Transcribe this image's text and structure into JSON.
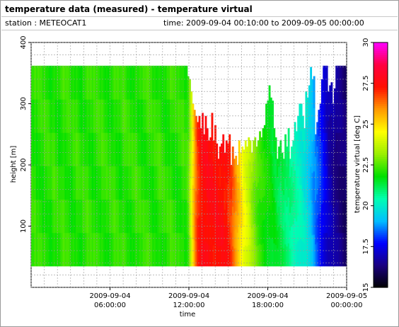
{
  "header": {
    "title": "temperature data (measured) - temperature virtual",
    "station": "station : METEOCAT1",
    "timerange": "time: 2009-09-04 00:10:00 to 2009-09-05 00:00:00"
  },
  "chart_data": {
    "type": "heatmap",
    "xlabel": "time",
    "ylabel": "height [m]",
    "colorbar_label": "temperature virtual [deg C]",
    "xlim": [
      0,
      24
    ],
    "ylim": [
      0,
      400
    ],
    "clim": [
      15,
      30
    ],
    "x_ticks": [
      {
        "value": 6,
        "line1": "2009-09-04",
        "line2": "06:00:00"
      },
      {
        "value": 12,
        "line1": "2009-09-04",
        "line2": "12:00:00"
      },
      {
        "value": 18,
        "line1": "2009-09-04",
        "line2": "18:00:00"
      },
      {
        "value": 24,
        "line1": "2009-09-05",
        "line2": "00:00:00"
      }
    ],
    "y_ticks": [
      {
        "value": 100,
        "label": "100"
      },
      {
        "value": 200,
        "label": "200"
      },
      {
        "value": 300,
        "label": "300"
      },
      {
        "value": 400,
        "label": "400"
      }
    ],
    "colorbar_ticks": [
      {
        "value": 15,
        "label": "15"
      },
      {
        "value": 17.5,
        "label": "17.5"
      },
      {
        "value": 20,
        "label": "20"
      },
      {
        "value": 22.5,
        "label": "22.5"
      },
      {
        "value": 25,
        "label": "25"
      },
      {
        "value": 27.5,
        "label": "27.5"
      },
      {
        "value": 30,
        "label": "30"
      }
    ],
    "colorscale": [
      "#000000",
      "#1a0080",
      "#0000ff",
      "#00bfff",
      "#00ffb0",
      "#00e000",
      "#9aef00",
      "#ffff00",
      "#ff9a00",
      "#ff1000",
      "#ff0040",
      "#ff00ff"
    ],
    "height_min": 35,
    "profile_ticks": [
      7,
      7.5,
      8,
      8.5,
      9,
      9.5,
      10,
      10.5,
      11,
      11.5,
      12,
      12.5,
      13,
      13.5,
      14,
      14.5,
      15,
      15.5,
      16,
      16.5,
      17,
      17.5,
      18,
      18.5,
      19,
      19.5,
      20,
      20.5,
      21,
      21.5,
      22,
      22.5,
      23,
      23.5
    ],
    "profile_tops": [
      362,
      362,
      362,
      362,
      362,
      362,
      362,
      362,
      362,
      362,
      362,
      362,
      362,
      362,
      362,
      362,
      362,
      362,
      362,
      362,
      362,
      362,
      362,
      362,
      362,
      362,
      362,
      362,
      362,
      362,
      362,
      362,
      362,
      362,
      362,
      362,
      362,
      362,
      362,
      362,
      362,
      362,
      362,
      362,
      362,
      362,
      362,
      362,
      362,
      362,
      362,
      362,
      362,
      362,
      362,
      362,
      362,
      362,
      362,
      362,
      362,
      362,
      362,
      362,
      362,
      362,
      362,
      362,
      362,
      362,
      362,
      362,
      362,
      362,
      362,
      362,
      362,
      362,
      362,
      362,
      362,
      362,
      362,
      362,
      362,
      362,
      362,
      362,
      362,
      362,
      362,
      362,
      362,
      362,
      362,
      362,
      362,
      362,
      345,
      340,
      320,
      300,
      290,
      280,
      270,
      280,
      260,
      285,
      250,
      280,
      260,
      240,
      245,
      285,
      240,
      265,
      235,
      210,
      230,
      235,
      250,
      220,
      240,
      235,
      250,
      200,
      230,
      210,
      215,
      200,
      240,
      220,
      230,
      225,
      240,
      230,
      245,
      240,
      220,
      240,
      245,
      230,
      240,
      255,
      245,
      260,
      265,
      300,
      305,
      330,
      310,
      305,
      260,
      245,
      210,
      230,
      240,
      220,
      210,
      250,
      230,
      260,
      210,
      230,
      240,
      270,
      255,
      280,
      300,
      300,
      280,
      260,
      320,
      310,
      330,
      360,
      340,
      345,
      250,
      270,
      290,
      300,
      340,
      362,
      362,
      362,
      320,
      330,
      335,
      300,
      325
    ],
    "columns": [
      [
        22.2,
        22.1,
        22.3,
        22.0,
        22.2,
        22.1,
        22.2,
        22.0,
        22.3,
        22.1,
        22.2,
        22.1,
        22.0,
        22.2,
        22.3,
        22.1,
        22.2,
        22.0,
        22.1,
        22.2,
        22.3,
        22.1,
        22.2,
        22.2,
        22.1,
        22.0,
        22.2,
        22.1,
        22.3,
        22.2,
        22.1,
        22.0,
        22.2,
        22.1,
        22.2,
        22.3,
        22.1,
        22.2,
        22.0,
        22.2,
        22.1,
        22.2,
        22.2,
        22.1,
        22.3,
        22.2,
        22.1,
        22.2,
        22.0,
        22.2,
        22.1,
        22.2,
        22.3,
        22.1,
        22.2,
        22.0,
        22.1,
        22.2,
        22.3,
        22.2,
        22.1,
        22.2,
        22.0,
        22.2,
        22.1,
        22.3,
        22.2,
        22.1,
        22.2,
        22.0,
        22.2,
        22.1,
        22.2,
        22.3,
        22.1,
        22.2,
        22.0,
        22.2,
        22.1,
        22.2,
        22.3,
        22.2,
        22.1,
        22.2,
        22.0,
        22.2,
        22.1,
        22.3,
        22.2,
        22.1,
        22.2,
        22.0,
        22.2,
        22.1,
        22.2,
        22.3,
        22.1,
        22.2,
        22.5,
        23.2,
        24.0,
        25.0,
        25.8,
        26.4,
        26.9,
        27.2,
        27.4,
        27.5,
        27.6,
        27.5,
        27.7,
        27.6,
        27.5,
        27.6,
        27.4,
        27.5,
        27.6,
        27.5,
        27.4,
        27.6,
        27.5,
        27.3,
        27.4,
        27.2,
        27.0,
        26.8,
        26.5,
        26.2,
        25.9,
        25.6,
        25.3,
        25.0,
        24.7,
        24.4,
        24.2,
        24.0,
        23.8,
        23.5,
        23.2,
        23.0,
        22.8,
        22.6,
        22.4,
        22.3,
        22.2,
        22.1,
        22.0,
        21.9,
        21.8,
        21.8,
        21.7,
        21.6,
        21.6,
        21.5,
        21.4,
        21.3,
        21.2,
        21.2,
        21.1,
        21.0,
        20.9,
        20.9,
        20.8,
        20.7,
        20.6,
        20.5,
        20.4,
        20.3,
        20.2,
        20.1,
        20.0,
        19.9,
        19.8,
        19.6,
        19.4,
        19.2,
        19.0,
        18.8,
        18.6,
        18.4,
        18.2,
        18.0,
        17.8,
        17.6,
        17.4,
        17.2,
        17.0,
        16.9,
        16.8,
        16.7,
        16.6,
        16.5,
        16.5,
        16.4,
        16.4,
        16.3,
        16.2,
        16.2
      ]
    ]
  }
}
